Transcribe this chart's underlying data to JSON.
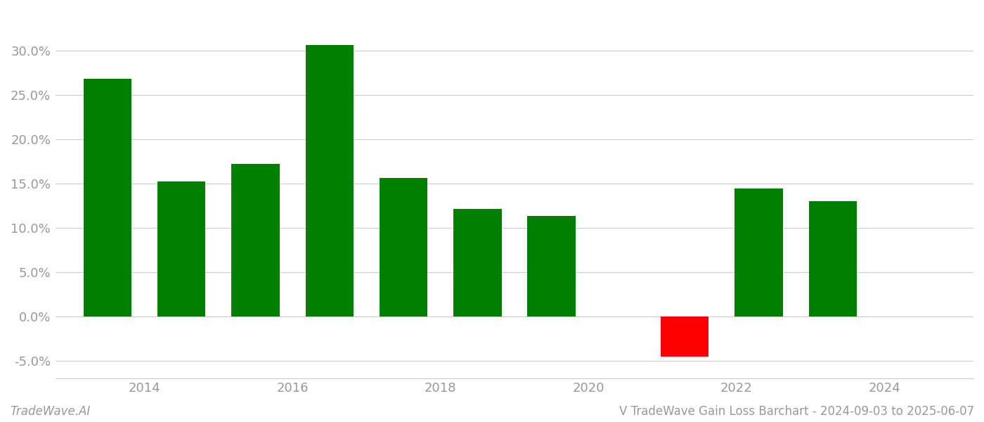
{
  "years": [
    2013.5,
    2014.5,
    2015.5,
    2016.5,
    2017.5,
    2018.5,
    2019.5,
    2021.3,
    2022.3,
    2023.3
  ],
  "values": [
    0.268,
    0.152,
    0.172,
    0.306,
    0.156,
    0.121,
    0.113,
    -0.045,
    0.144,
    0.13
  ],
  "colors": [
    "#008000",
    "#008000",
    "#008000",
    "#008000",
    "#008000",
    "#008000",
    "#008000",
    "#ff0000",
    "#008000",
    "#008000"
  ],
  "bar_width": 0.65,
  "xlim": [
    2012.8,
    2025.2
  ],
  "ylim": [
    -0.07,
    0.345
  ],
  "xticks": [
    2014,
    2016,
    2018,
    2020,
    2022,
    2024
  ],
  "yticks": [
    -0.05,
    0.0,
    0.05,
    0.1,
    0.15,
    0.2,
    0.25,
    0.3
  ],
  "ytick_labels": [
    "-5.0%",
    "0.0%",
    "5.0%",
    "10.0%",
    "15.0%",
    "20.0%",
    "25.0%",
    "30.0%"
  ],
  "footer_left": "TradeWave.AI",
  "footer_right": "V TradeWave Gain Loss Barchart - 2024-09-03 to 2025-06-07",
  "background_color": "#ffffff",
  "grid_color": "#cccccc",
  "text_color": "#999999"
}
